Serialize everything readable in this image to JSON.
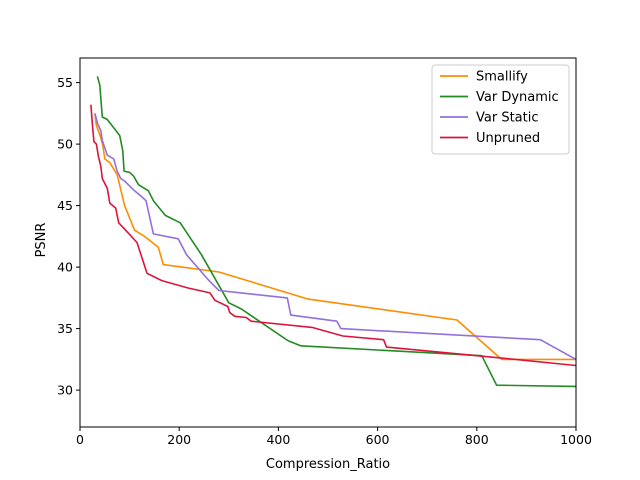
{
  "chart_data": {
    "type": "line",
    "title": "",
    "xlabel": "Compression_Ratio",
    "ylabel": "PSNR",
    "xlim": [
      0,
      1000
    ],
    "ylim": [
      27,
      57
    ],
    "xticks": [
      0,
      200,
      400,
      600,
      800,
      1000
    ],
    "yticks": [
      30,
      35,
      40,
      45,
      50,
      55
    ],
    "grid": false,
    "legend_position": "top-right",
    "series": [
      {
        "name": "Smallify",
        "color": "#ff8c00",
        "points": [
          [
            30,
            52.5
          ],
          [
            33,
            51.5
          ],
          [
            38,
            51.0
          ],
          [
            42,
            50.5
          ],
          [
            46,
            49.9
          ],
          [
            50,
            48.8
          ],
          [
            60,
            48.5
          ],
          [
            75,
            47.5
          ],
          [
            90,
            45.0
          ],
          [
            110,
            43.0
          ],
          [
            130,
            42.5
          ],
          [
            158,
            41.6
          ],
          [
            168,
            40.2
          ],
          [
            280,
            39.6
          ],
          [
            460,
            37.4
          ],
          [
            760,
            35.7
          ],
          [
            850,
            32.5
          ],
          [
            1000,
            32.5
          ]
        ]
      },
      {
        "name": "Var Dynamic",
        "color": "#228b22",
        "points": [
          [
            35,
            55.5
          ],
          [
            37,
            55.2
          ],
          [
            40,
            54.8
          ],
          [
            45,
            52.2
          ],
          [
            55,
            52.0
          ],
          [
            80,
            50.7
          ],
          [
            86,
            49.5
          ],
          [
            89,
            47.8
          ],
          [
            100,
            47.7
          ],
          [
            108,
            47.4
          ],
          [
            118,
            46.7
          ],
          [
            138,
            46.2
          ],
          [
            148,
            45.4
          ],
          [
            172,
            44.2
          ],
          [
            202,
            43.6
          ],
          [
            245,
            41.0
          ],
          [
            300,
            37.1
          ],
          [
            325,
            36.6
          ],
          [
            420,
            34.0
          ],
          [
            445,
            33.6
          ],
          [
            810,
            32.8
          ],
          [
            840,
            30.4
          ],
          [
            1000,
            30.3
          ]
        ]
      },
      {
        "name": "Var Static",
        "color": "#9370db",
        "points": [
          [
            30,
            52.5
          ],
          [
            36,
            51.6
          ],
          [
            42,
            51.1
          ],
          [
            45,
            50.3
          ],
          [
            55,
            49.1
          ],
          [
            68,
            48.8
          ],
          [
            75,
            47.8
          ],
          [
            82,
            47.2
          ],
          [
            90,
            47.0
          ],
          [
            110,
            46.2
          ],
          [
            125,
            45.7
          ],
          [
            133,
            45.4
          ],
          [
            148,
            42.7
          ],
          [
            198,
            42.3
          ],
          [
            215,
            41.0
          ],
          [
            260,
            38.9
          ],
          [
            280,
            38.1
          ],
          [
            325,
            37.9
          ],
          [
            418,
            37.5
          ],
          [
            425,
            36.1
          ],
          [
            518,
            35.6
          ],
          [
            526,
            35.0
          ],
          [
            928,
            34.1
          ],
          [
            1000,
            32.5
          ]
        ]
      },
      {
        "name": "Unpruned",
        "color": "#dc143c",
        "points": [
          [
            22,
            53.2
          ],
          [
            25,
            51.6
          ],
          [
            28,
            50.2
          ],
          [
            33,
            50.0
          ],
          [
            37,
            49.0
          ],
          [
            42,
            48.2
          ],
          [
            45,
            47.2
          ],
          [
            55,
            46.4
          ],
          [
            60,
            45.2
          ],
          [
            72,
            44.8
          ],
          [
            78,
            43.6
          ],
          [
            92,
            43.0
          ],
          [
            115,
            42.0
          ],
          [
            135,
            39.5
          ],
          [
            165,
            38.9
          ],
          [
            218,
            38.3
          ],
          [
            262,
            37.9
          ],
          [
            272,
            37.3
          ],
          [
            298,
            36.8
          ],
          [
            302,
            36.3
          ],
          [
            312,
            36.0
          ],
          [
            335,
            35.9
          ],
          [
            345,
            35.6
          ],
          [
            468,
            35.1
          ],
          [
            530,
            34.4
          ],
          [
            612,
            34.1
          ],
          [
            618,
            33.5
          ],
          [
            850,
            32.6
          ],
          [
            1000,
            32.0
          ]
        ]
      }
    ]
  }
}
